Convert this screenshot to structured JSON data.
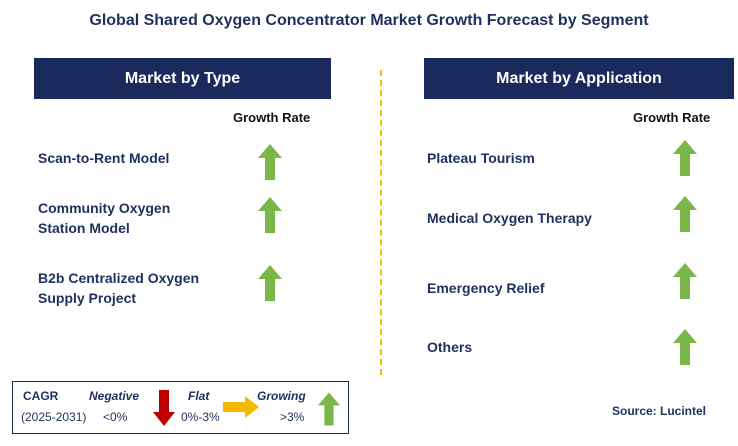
{
  "title": "Global Shared Oxygen Concentrator Market Growth Forecast by Segment",
  "left_panel": {
    "header": "Market by Type",
    "growth_label": "Growth Rate",
    "rows": [
      {
        "label": "Scan-to-Rent Model",
        "trend": "growing"
      },
      {
        "label": "Community Oxygen Station Model",
        "trend": "growing"
      },
      {
        "label": "B2b Centralized Oxygen Supply Project",
        "trend": "growing"
      }
    ]
  },
  "right_panel": {
    "header": "Market by Application",
    "growth_label": "Growth Rate",
    "rows": [
      {
        "label": "Plateau Tourism",
        "trend": "growing"
      },
      {
        "label": "Medical Oxygen Therapy",
        "trend": "growing"
      },
      {
        "label": "Emergency Relief",
        "trend": "growing"
      },
      {
        "label": "Others",
        "trend": "growing"
      }
    ]
  },
  "legend": {
    "cagr_label": "CAGR",
    "period": "(2025-2031)",
    "negative_label": "Negative",
    "negative_value": "<0%",
    "flat_label": "Flat",
    "flat_value": "0%-3%",
    "growing_label": "Growing",
    "growing_value": ">3%"
  },
  "source": "Source: Lucintel",
  "colors": {
    "header_bg": "#1b2a5c",
    "growing_arrow": "#7ab648",
    "negative_arrow": "#c00000",
    "flat_arrow": "#f5b800",
    "divider": "#f2c200"
  }
}
